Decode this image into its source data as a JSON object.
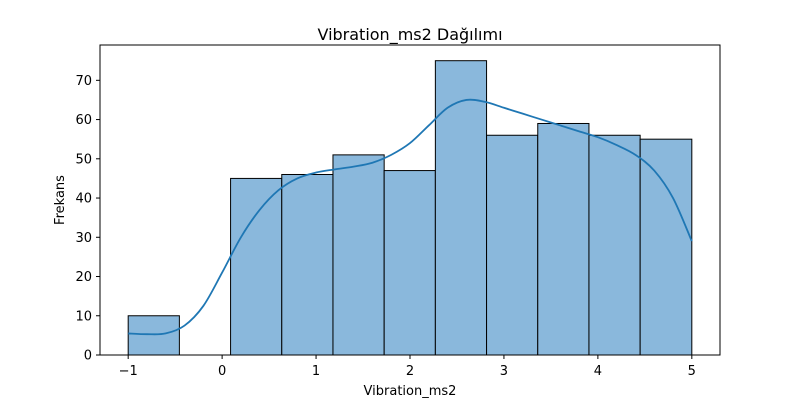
{
  "chart_data": {
    "type": "bar",
    "title": "Vibration_ms2 Dağılımı",
    "xlabel": "Vibration_ms2",
    "ylabel": "Frekans",
    "xlim": [
      -1.3,
      5.3
    ],
    "ylim": [
      0,
      79
    ],
    "xticks": [
      -1,
      0,
      1,
      2,
      3,
      4,
      5
    ],
    "xtick_labels": [
      "−1",
      "0",
      "1",
      "2",
      "3",
      "4",
      "5"
    ],
    "yticks": [
      0,
      10,
      20,
      30,
      40,
      50,
      60,
      70
    ],
    "yticks_labels": [
      "0",
      "10",
      "20",
      "30",
      "40",
      "50",
      "60",
      "70"
    ],
    "bins": [
      {
        "x0": -1.0,
        "x1": -0.455,
        "count": 10
      },
      {
        "x0": 0.09,
        "x1": 0.635,
        "count": 45
      },
      {
        "x0": 0.635,
        "x1": 1.18,
        "count": 46
      },
      {
        "x0": 1.18,
        "x1": 1.725,
        "count": 51
      },
      {
        "x0": 1.725,
        "x1": 2.27,
        "count": 47
      },
      {
        "x0": 2.27,
        "x1": 2.815,
        "count": 75
      },
      {
        "x0": 2.815,
        "x1": 3.36,
        "count": 56
      },
      {
        "x0": 3.36,
        "x1": 3.905,
        "count": 59
      },
      {
        "x0": 3.905,
        "x1": 4.45,
        "count": 56
      },
      {
        "x0": 4.45,
        "x1": 5.0,
        "count": 55
      }
    ],
    "kde": {
      "x": [
        -1.0,
        -0.8,
        -0.6,
        -0.4,
        -0.2,
        0.0,
        0.2,
        0.4,
        0.6,
        0.8,
        1.0,
        1.2,
        1.4,
        1.6,
        1.8,
        2.0,
        2.2,
        2.4,
        2.6,
        2.8,
        3.0,
        3.2,
        3.4,
        3.6,
        3.8,
        4.0,
        4.2,
        4.4,
        4.6,
        4.8,
        5.0
      ],
      "y": [
        5.5,
        5.3,
        5.5,
        7.5,
        12.5,
        21,
        30,
        37,
        42,
        45,
        46.5,
        47.3,
        48,
        49,
        51,
        54,
        58.5,
        63,
        65,
        64.5,
        63,
        61.5,
        60,
        58.5,
        57,
        55.5,
        53.5,
        51,
        47,
        40,
        29
      ]
    },
    "bar_color": "#8ab8dc",
    "bar_edge_color": "#000000",
    "kde_color": "#1f77b4",
    "grid": false,
    "legend": "none"
  }
}
